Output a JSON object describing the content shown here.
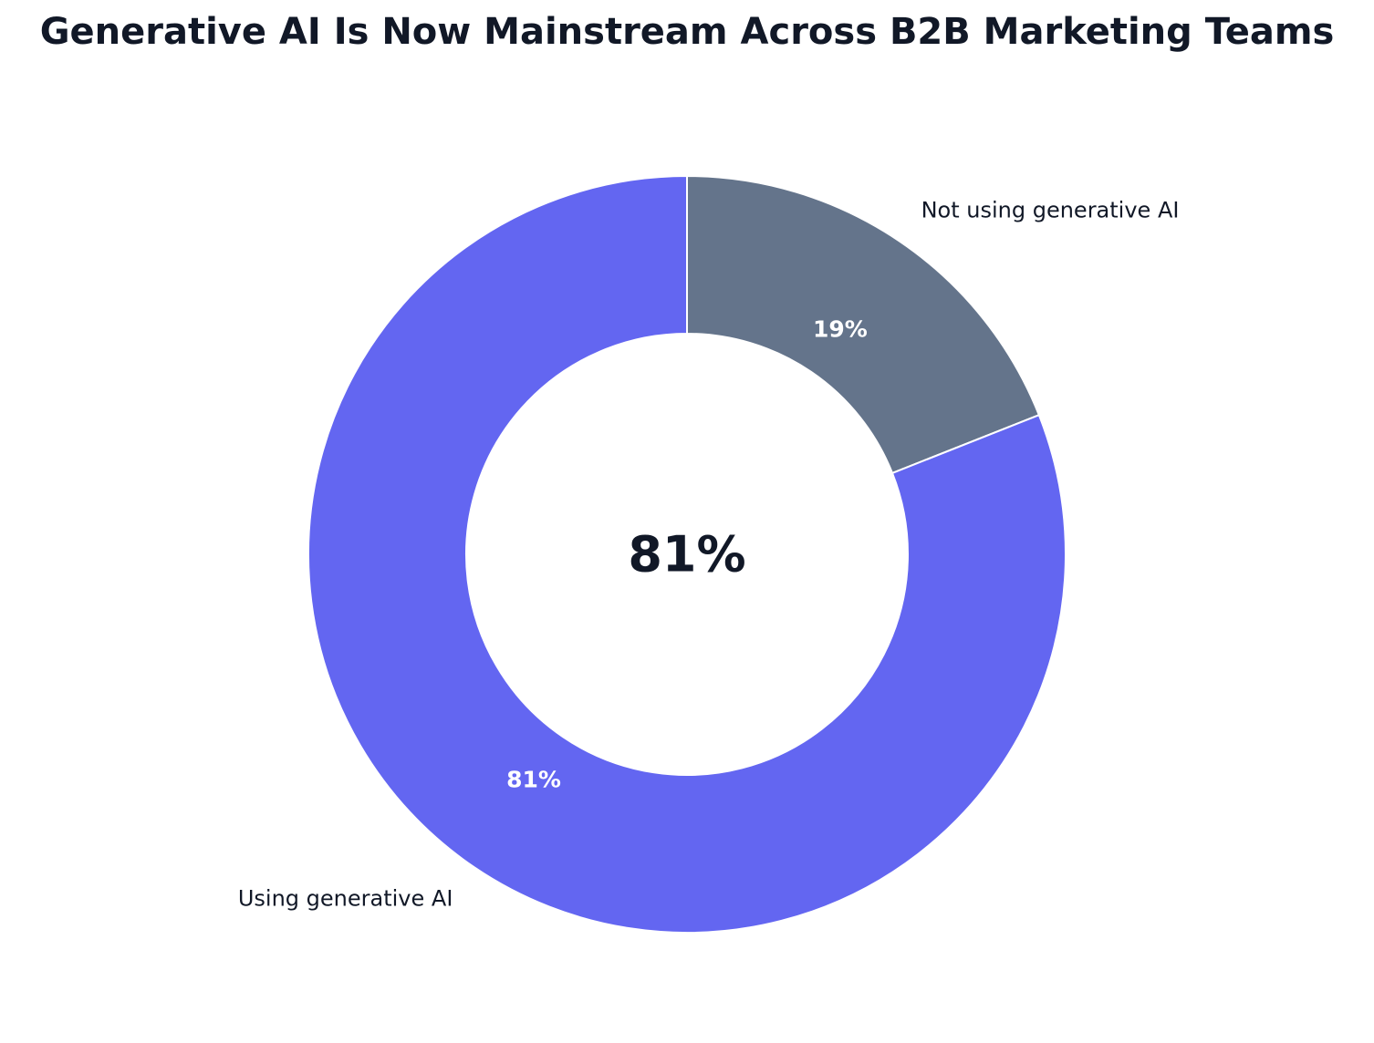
{
  "chart_data": {
    "type": "pie",
    "variant": "donut",
    "title": "Generative AI Is Now Mainstream Across B2B Marketing Teams",
    "center_label": "81%",
    "slices": [
      {
        "label": "Not using generative AI",
        "value": 19,
        "percent_label": "19%",
        "color": "#64748b"
      },
      {
        "label": "Using generative AI",
        "value": 81,
        "percent_label": "81%",
        "color": "#6366f1"
      }
    ],
    "legend": "none",
    "start_angle_deg": 90,
    "direction": "clockwise"
  },
  "colors": {
    "title": "#111827",
    "label_text": "#111827",
    "slice_label_text": "#ffffff",
    "background": "#ffffff",
    "slice_edge": "#ffffff"
  }
}
